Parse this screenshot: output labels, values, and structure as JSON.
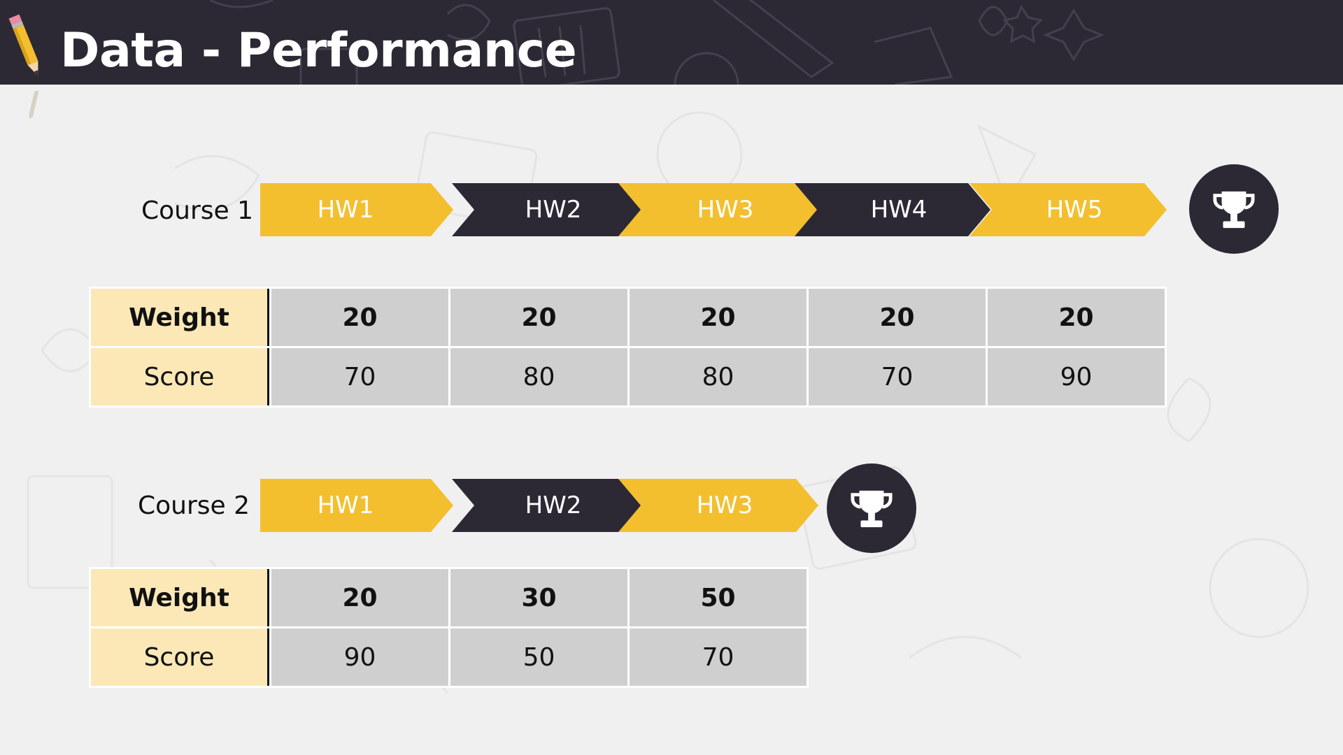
{
  "slide": {
    "title": "Data - Performance"
  },
  "courses": [
    {
      "label": "Course 1",
      "homeworks": [
        "HW1",
        "HW2",
        "HW3",
        "HW4",
        "HW5"
      ],
      "weight_label": "Weight",
      "score_label": "Score",
      "weights": [
        "20",
        "20",
        "20",
        "20",
        "20"
      ],
      "scores": [
        "70",
        "80",
        "80",
        "70",
        "90"
      ]
    },
    {
      "label": "Course 2",
      "homeworks": [
        "HW1",
        "HW2",
        "HW3"
      ],
      "weight_label": "Weight",
      "score_label": "Score",
      "weights": [
        "20",
        "30",
        "50"
      ],
      "scores": [
        "90",
        "50",
        "70"
      ]
    }
  ],
  "icons": {
    "title": "pencil-icon",
    "goal": "trophy-icon"
  },
  "colors": {
    "accent": "#f3bf2f",
    "dark": "#2c2935",
    "label_cell": "#fbe8b6",
    "value_cell": "#cfcfcf",
    "background": "#f0f0f0"
  }
}
